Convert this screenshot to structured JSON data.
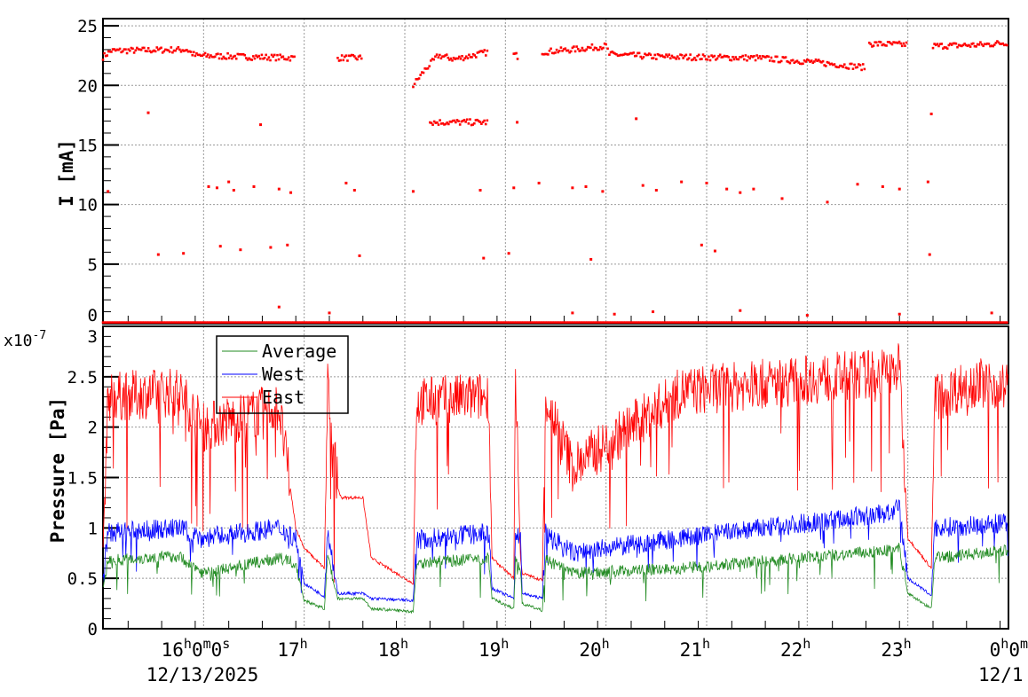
{
  "chart_data": [
    {
      "type": "scatter",
      "ylabel": "I [mA]",
      "ylim": [
        0,
        25.6
      ],
      "xlim": [
        "15:00",
        "24:00"
      ],
      "yticks": [
        "0",
        "5",
        "10",
        "15",
        "20",
        "25"
      ],
      "grid": true,
      "color": "#ff0000",
      "segments": [
        {
          "x": [
            "15:00",
            "15:05",
            "15:50",
            "15:55",
            "16:55"
          ],
          "y": [
            22.4,
            22.9,
            23.0,
            22.5,
            22.3
          ]
        },
        {
          "x": [
            "17:20",
            "17:35"
          ],
          "y": [
            22.3,
            22.3
          ]
        },
        {
          "x": [
            "18:05",
            "18:12",
            "18:20",
            "18:30",
            "18:50"
          ],
          "y": [
            20.0,
            21.3,
            22.5,
            22.2,
            22.8
          ]
        },
        {
          "x": [
            "19:05",
            "19:08"
          ],
          "y": [
            22.6,
            22.4
          ]
        },
        {
          "x": [
            "19:22",
            "19:40",
            "20:00",
            "20:02",
            "20:30",
            "21:30",
            "22:00",
            "22:35"
          ],
          "y": [
            22.8,
            23.0,
            23.3,
            22.6,
            22.4,
            22.3,
            22.0,
            21.5
          ]
        },
        {
          "x": [
            "22:37",
            "23:00"
          ],
          "y": [
            23.5,
            23.4
          ]
        },
        {
          "x": [
            "23:15",
            "23:45",
            "24:00"
          ],
          "y": [
            23.3,
            23.4,
            23.6
          ]
        },
        {
          "x": [
            "15:00",
            "24:00"
          ],
          "y": [
            0.1,
            0.1
          ]
        },
        {
          "x": [
            "18:15",
            "18:50"
          ],
          "y": [
            16.9,
            16.9
          ]
        }
      ],
      "outliers": [
        [
          "15:27",
          17.7
        ],
        [
          "15:03",
          11.1
        ],
        [
          "15:33",
          5.8
        ],
        [
          "15:48",
          5.9
        ],
        [
          "16:03",
          11.5
        ],
        [
          "16:08",
          11.4
        ],
        [
          "16:10",
          6.5
        ],
        [
          "16:15",
          11.9
        ],
        [
          "16:18",
          11.2
        ],
        [
          "16:22",
          6.2
        ],
        [
          "16:30",
          11.5
        ],
        [
          "16:34",
          16.7
        ],
        [
          "16:40",
          6.4
        ],
        [
          "16:45",
          11.3
        ],
        [
          "16:50",
          6.6
        ],
        [
          "16:52",
          11.0
        ],
        [
          "17:25",
          11.8
        ],
        [
          "17:30",
          11.2
        ],
        [
          "17:33",
          5.7
        ],
        [
          "18:05",
          11.1
        ],
        [
          "18:45",
          11.2
        ],
        [
          "18:47",
          5.5
        ],
        [
          "19:02",
          5.9
        ],
        [
          "19:05",
          11.4
        ],
        [
          "19:07",
          16.9
        ],
        [
          "19:20",
          11.8
        ],
        [
          "19:40",
          11.4
        ],
        [
          "19:48",
          11.5
        ],
        [
          "19:51",
          5.4
        ],
        [
          "19:58",
          11.1
        ],
        [
          "20:18",
          17.2
        ],
        [
          "20:22",
          11.6
        ],
        [
          "20:30",
          11.2
        ],
        [
          "20:45",
          11.9
        ],
        [
          "20:57",
          6.6
        ],
        [
          "21:00",
          11.8
        ],
        [
          "21:05",
          6.1
        ],
        [
          "21:12",
          11.3
        ],
        [
          "21:20",
          11.0
        ],
        [
          "21:28",
          11.3
        ],
        [
          "21:45",
          10.5
        ],
        [
          "22:12",
          10.2
        ],
        [
          "22:30",
          11.7
        ],
        [
          "22:45",
          11.5
        ],
        [
          "22:55",
          11.3
        ],
        [
          "23:12",
          11.9
        ],
        [
          "23:13",
          5.8
        ],
        [
          "23:14",
          17.6
        ],
        [
          "16:45",
          1.4
        ],
        [
          "17:15",
          0.9
        ],
        [
          "19:40",
          0.9
        ],
        [
          "20:05",
          0.8
        ],
        [
          "20:28",
          1.0
        ],
        [
          "21:20",
          1.1
        ],
        [
          "22:00",
          0.7
        ],
        [
          "22:55",
          0.8
        ],
        [
          "23:50",
          0.9
        ]
      ]
    },
    {
      "type": "line",
      "ylabel": "Pressure [Pa]",
      "yscale_label": "x10",
      "yscale_exp": "-7",
      "ylim": [
        0,
        3
      ],
      "yticks": [
        "0",
        "0.5",
        "1",
        "1.5",
        "2",
        "2.5",
        "3"
      ],
      "xlim": [
        "15:00",
        "24:00"
      ],
      "xticks": [
        "16h0m0s",
        "17h",
        "18h",
        "19h",
        "20h",
        "21h",
        "22h",
        "23h",
        "0h0m"
      ],
      "xtick_labels": [
        {
          "main": "16",
          "sup": "h",
          "rest": [
            [
              "0",
              "m"
            ],
            [
              "0",
              "s"
            ]
          ]
        },
        {
          "main": "17",
          "sup": "h",
          "rest": []
        },
        {
          "main": "18",
          "sup": "h",
          "rest": []
        },
        {
          "main": "19",
          "sup": "h",
          "rest": []
        },
        {
          "main": "20",
          "sup": "h",
          "rest": []
        },
        {
          "main": "21",
          "sup": "h",
          "rest": []
        },
        {
          "main": "22",
          "sup": "h",
          "rest": []
        },
        {
          "main": "23",
          "sup": "h",
          "rest": []
        },
        {
          "main": "0",
          "sup": "h",
          "rest": [
            [
              "0",
              "m"
            ]
          ]
        }
      ],
      "date_labels": [
        "12/13/2025",
        "12/1"
      ],
      "grid": true,
      "legend": {
        "placement": "top-left",
        "entries": [
          "Average",
          "West",
          "East"
        ]
      },
      "series": [
        {
          "name": "Average",
          "color": "#228b22",
          "x": [
            "15:00",
            "15:03",
            "15:45",
            "16:00",
            "16:45",
            "16:55",
            "17:00",
            "17:12",
            "17:14",
            "17:20",
            "17:35",
            "17:40",
            "18:05",
            "18:07",
            "18:50",
            "18:52",
            "19:05",
            "19:06",
            "19:09",
            "19:10",
            "19:22",
            "19:24",
            "19:40",
            "20:45",
            "22:50",
            "22:55",
            "23:00",
            "23:14",
            "23:16",
            "24:00"
          ],
          "y": [
            0.4,
            0.68,
            0.72,
            0.55,
            0.7,
            0.65,
            0.28,
            0.2,
            0.7,
            0.3,
            0.3,
            0.2,
            0.17,
            0.65,
            0.7,
            0.3,
            0.2,
            0.7,
            0.6,
            0.25,
            0.18,
            0.68,
            0.55,
            0.6,
            0.78,
            0.8,
            0.35,
            0.2,
            0.7,
            0.78
          ]
        },
        {
          "name": "West",
          "color": "#0000ff",
          "x": [
            "15:00",
            "15:03",
            "15:45",
            "16:00",
            "16:45",
            "16:55",
            "17:00",
            "17:12",
            "17:14",
            "17:20",
            "17:35",
            "17:40",
            "18:05",
            "18:07",
            "18:50",
            "18:52",
            "19:05",
            "19:06",
            "19:09",
            "19:10",
            "19:22",
            "19:24",
            "19:40",
            "20:45",
            "22:50",
            "22:55",
            "23:00",
            "23:14",
            "23:16",
            "24:00"
          ],
          "y": [
            0.5,
            0.95,
            1.0,
            0.9,
            1.0,
            0.9,
            0.45,
            0.32,
            1.0,
            0.35,
            0.35,
            0.3,
            0.28,
            0.88,
            0.95,
            0.4,
            0.3,
            0.95,
            0.9,
            0.35,
            0.3,
            0.95,
            0.75,
            0.9,
            1.15,
            1.2,
            0.5,
            0.33,
            1.0,
            1.05
          ]
        },
        {
          "name": "East",
          "color": "#ff0000",
          "x": [
            "15:00",
            "15:03",
            "15:45",
            "16:00",
            "16:45",
            "16:55",
            "17:00",
            "17:12",
            "17:14",
            "17:20",
            "17:22",
            "17:35",
            "17:40",
            "18:05",
            "18:07",
            "18:50",
            "18:52",
            "19:05",
            "19:06",
            "19:09",
            "19:10",
            "19:22",
            "19:24",
            "19:40",
            "20:45",
            "22:50",
            "22:55",
            "23:00",
            "23:14",
            "23:16",
            "23:40",
            "24:00"
          ],
          "y": [
            0.8,
            2.3,
            2.35,
            2.0,
            2.2,
            1.0,
            0.8,
            0.6,
            2.4,
            1.4,
            1.3,
            1.3,
            0.7,
            0.45,
            2.25,
            2.3,
            0.7,
            0.5,
            2.5,
            0.7,
            0.55,
            0.48,
            2.3,
            1.6,
            2.35,
            2.55,
            2.6,
            0.9,
            0.6,
            2.3,
            2.45,
            2.4
          ]
        }
      ]
    }
  ]
}
